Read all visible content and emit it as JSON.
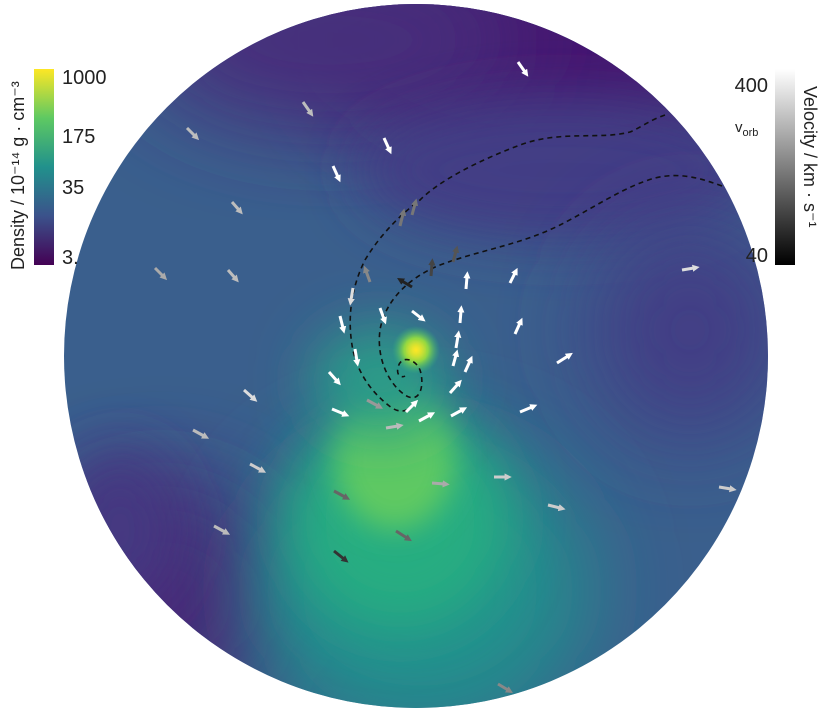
{
  "density_colorbar": {
    "title": "Density / 10⁻¹⁴ g · cm⁻³",
    "ticks": [
      "1000",
      "175",
      "35",
      "3."
    ],
    "colormap": [
      "#440154",
      "#3b528b",
      "#21918c",
      "#5ec962",
      "#fde725"
    ]
  },
  "velocity_colorbar": {
    "title": "Velocity / km · s⁻¹",
    "ticks": [
      "400",
      "40"
    ],
    "marker_label_main": "v",
    "marker_label_sub": "orb",
    "colormap": [
      "#000000",
      "#ffffff"
    ]
  },
  "plot": {
    "shape": "circle",
    "dashed_curve": "stream-boundary",
    "arrow_colors": {
      "fast": "#ffffff",
      "medium": "#bdbdbd",
      "slow": "#555555",
      "slowest": "#222222"
    }
  }
}
